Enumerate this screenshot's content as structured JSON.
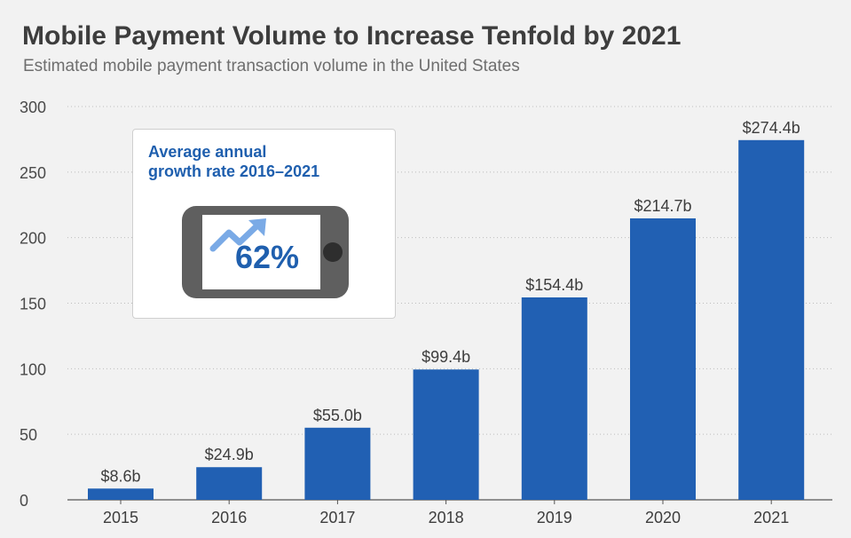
{
  "title": "Mobile Payment Volume to Increase Tenfold by 2021",
  "subtitle": "Estimated mobile payment transaction volume in the United States",
  "callout": {
    "line1": "Average annual",
    "line2": "growth rate 2016–2021",
    "value": "62%",
    "icons": [
      "phone-icon",
      "trend-up-arrow-icon"
    ]
  },
  "colors": {
    "bar": "#2160b3",
    "callout_text": "#1f5fae",
    "title": "#3d3d3d"
  },
  "chart_data": {
    "type": "bar",
    "categories": [
      "2015",
      "2016",
      "2017",
      "2018",
      "2019",
      "2020",
      "2021"
    ],
    "values": [
      8.6,
      24.9,
      55.0,
      99.4,
      154.4,
      214.7,
      274.4
    ],
    "data_labels": [
      "$8.6b",
      "$24.9b",
      "$55.0b",
      "$99.4b",
      "$154.4b",
      "$214.7b",
      "$274.4b"
    ],
    "yticks": [
      0,
      50,
      100,
      150,
      200,
      250,
      300
    ],
    "ylim": [
      0,
      300
    ],
    "grid": true,
    "xlabel": "",
    "ylabel": ""
  }
}
